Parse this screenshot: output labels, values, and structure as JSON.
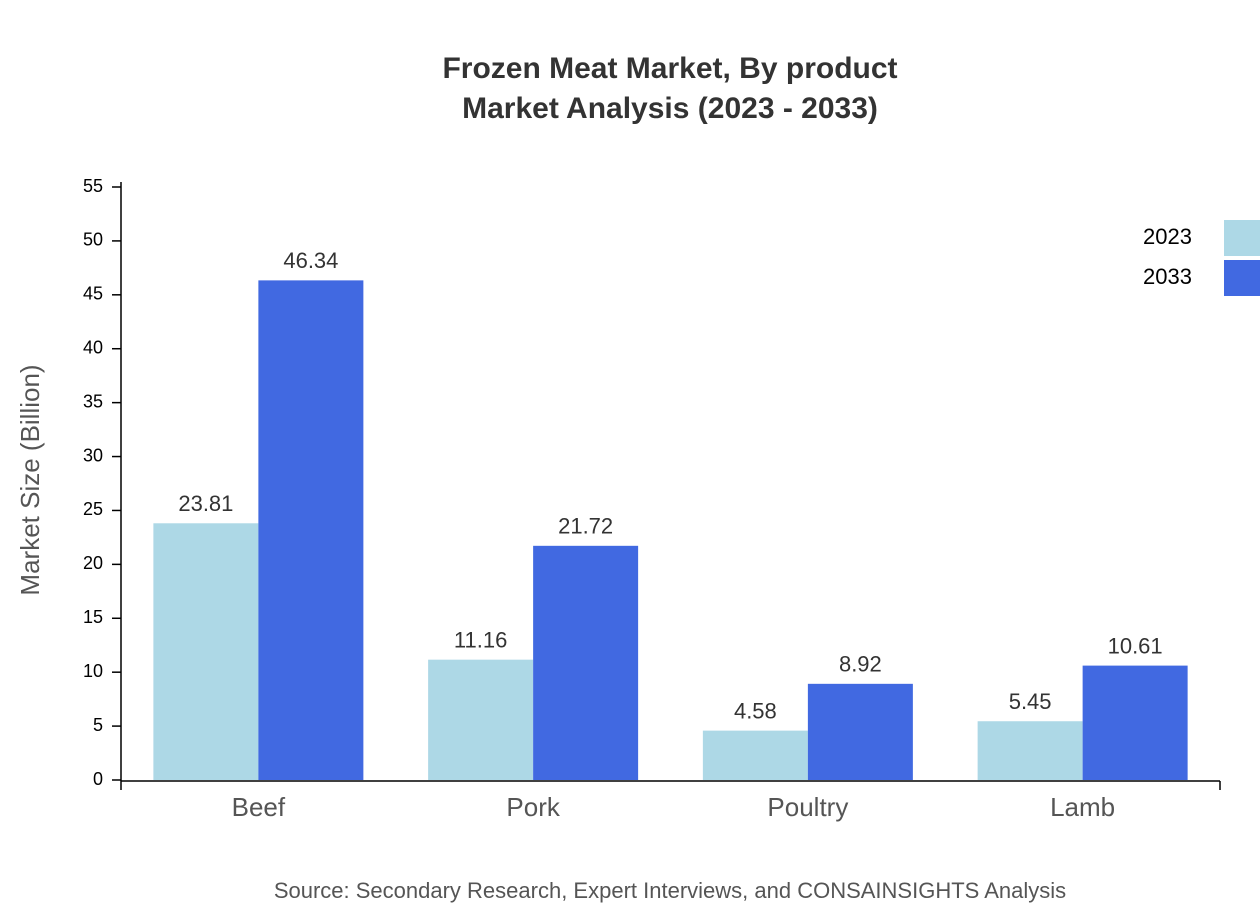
{
  "chart_data": {
    "type": "bar",
    "title": "Frozen Meat Market, By product",
    "subtitle": "Market Analysis (2023 - 2033)",
    "y_label": "Market Size (Billion)",
    "source": "Source: Secondary Research, Expert Interviews, and CONSAINSIGHTS Analysis",
    "categories": [
      "Beef",
      "Pork",
      "Poultry",
      "Lamb"
    ],
    "series": [
      {
        "name": "2023",
        "color": "#add8e6",
        "values": [
          23.81,
          11.16,
          4.58,
          5.45
        ]
      },
      {
        "name": "2033",
        "color": "#4169e1",
        "values": [
          46.34,
          21.72,
          8.92,
          10.61
        ]
      }
    ],
    "ylim": [
      0,
      55
    ],
    "yticks": [
      0,
      5,
      10,
      15,
      20,
      25,
      30,
      35,
      40,
      45,
      50,
      55
    ],
    "legend": "top-right"
  }
}
